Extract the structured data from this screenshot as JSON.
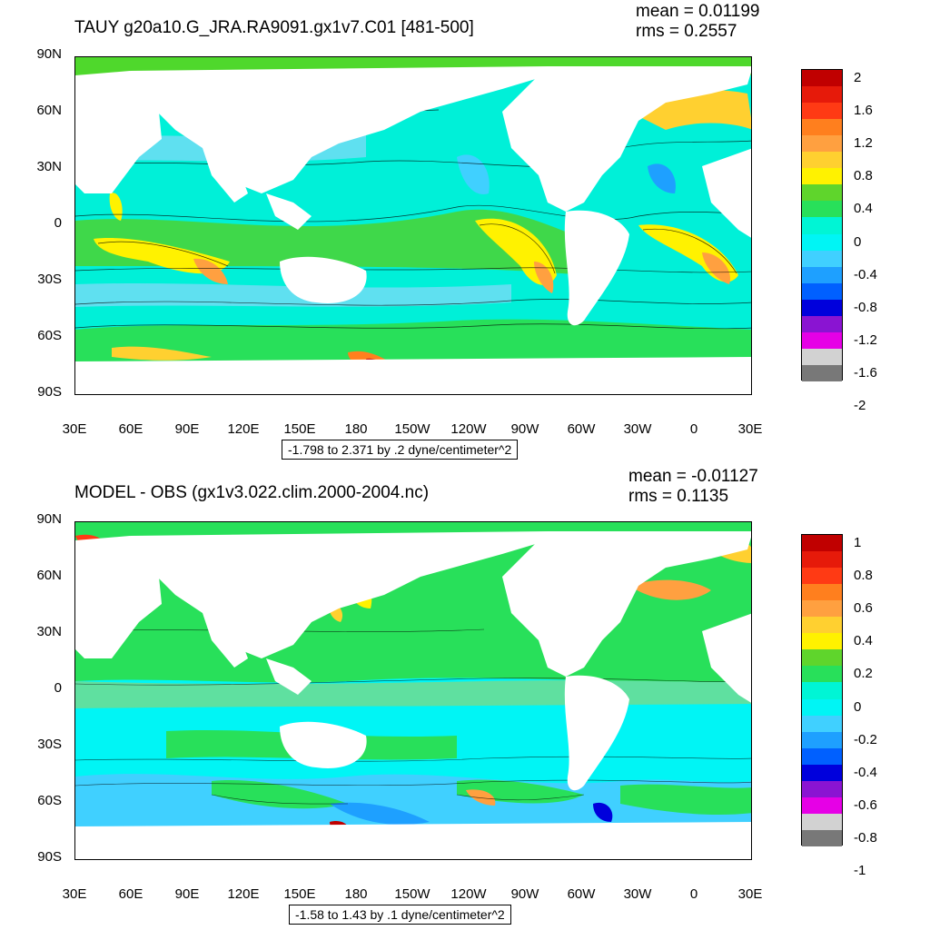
{
  "panels": [
    {
      "title": "TAUY g20a10.G_JRA.RA9091.gx1v7.C01 [481-500]",
      "mean": "mean = 0.01199",
      "rms": "rms = 0.2557",
      "range_label": "-1.798 to 2.371 by .2 dyne/centimeter^2",
      "colorbar_labels": [
        "2",
        "1.6",
        "1.2",
        "0.8",
        "0.4",
        "0",
        "-0.4",
        "-0.8",
        "-1.2",
        "-1.6",
        "-2"
      ]
    },
    {
      "title": "MODEL - OBS (gx1v3.022.clim.2000-2004.nc)",
      "mean": "mean = -0.01127",
      "rms": "rms = 0.1135",
      "range_label": "-1.58 to 1.43 by .1 dyne/centimeter^2",
      "colorbar_labels": [
        "1",
        "0.8",
        "0.6",
        "0.4",
        "0.2",
        "0",
        "-0.2",
        "-0.4",
        "-0.6",
        "-0.8",
        "-1"
      ]
    }
  ],
  "lat_labels": [
    "90N",
    "60N",
    "30N",
    "0",
    "30S",
    "60S",
    "90S"
  ],
  "lon_labels": [
    "30E",
    "60E",
    "90E",
    "120E",
    "150E",
    "180",
    "150W",
    "120W",
    "90W",
    "60W",
    "30W",
    "0",
    "30E"
  ],
  "colorbar_colors": [
    "#c00000",
    "#e61a0a",
    "#ff3a14",
    "#ff7f1e",
    "#ffa040",
    "#ffd030",
    "#fff200",
    "#5fd52c",
    "#28e05a",
    "#00f5d5",
    "#00f5f5",
    "#40d0ff",
    "#1ea0ff",
    "#0060ff",
    "#0000dc",
    "#8a14d2",
    "#e600e6",
    "#d2d2d2",
    "#787878"
  ],
  "land_color": "#ffffff",
  "chart_data": [
    {
      "type": "heatmap",
      "title": "TAUY g20a10.G_JRA.RA9091.gx1v7.C01 [481-500]",
      "xlabel": "",
      "ylabel": "",
      "x_ticks": [
        "30E",
        "60E",
        "90E",
        "120E",
        "150E",
        "180",
        "150W",
        "120W",
        "90W",
        "60W",
        "30W",
        "0",
        "30E"
      ],
      "y_ticks": [
        "90N",
        "60N",
        "30N",
        "0",
        "30S",
        "60S",
        "90S"
      ],
      "xlim": [
        30,
        390
      ],
      "ylim": [
        -90,
        90
      ],
      "mean": 0.01199,
      "rms": 0.2557,
      "contour_min": -1.798,
      "contour_max": 2.371,
      "contour_interval": 0.2,
      "units": "dyne/centimeter^2",
      "colorbar_ticks": [
        2,
        1.6,
        1.2,
        0.8,
        0.4,
        0,
        -0.4,
        -0.8,
        -1.2,
        -1.6,
        -2
      ]
    },
    {
      "type": "heatmap",
      "title": "MODEL - OBS (gx1v3.022.clim.2000-2004.nc)",
      "xlabel": "",
      "ylabel": "",
      "x_ticks": [
        "30E",
        "60E",
        "90E",
        "120E",
        "150E",
        "180",
        "150W",
        "120W",
        "90W",
        "60W",
        "30W",
        "0",
        "30E"
      ],
      "y_ticks": [
        "90N",
        "60N",
        "30N",
        "0",
        "30S",
        "60S",
        "90S"
      ],
      "xlim": [
        30,
        390
      ],
      "ylim": [
        -90,
        90
      ],
      "mean": -0.01127,
      "rms": 0.1135,
      "contour_min": -1.58,
      "contour_max": 1.43,
      "contour_interval": 0.1,
      "units": "dyne/centimeter^2",
      "colorbar_ticks": [
        1,
        0.8,
        0.6,
        0.4,
        0.2,
        0,
        -0.2,
        -0.4,
        -0.6,
        -0.8,
        -1
      ]
    }
  ]
}
